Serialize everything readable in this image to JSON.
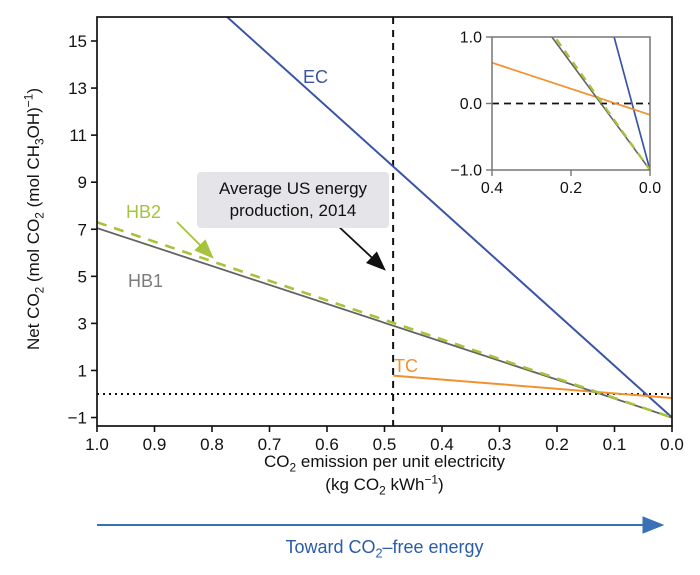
{
  "figure": {
    "background": "#ffffff",
    "axis_color": "#111111",
    "inset_axis_color": "#777777"
  },
  "chart_data": {
    "type": "line",
    "title": "",
    "xlabel_html": "CO<sub>2</sub> emission per unit electricity",
    "xlabel_line2_html": "(kg CO<sub>2</sub> kWh<sup>−1</sup>)",
    "ylabel_html": "Net CO<sub>2</sub> (mol CO<sub>2</sub> (mol CH<sub>3</sub>OH)<sup>−1</sup>)",
    "x_axis_reversed": true,
    "xlim": [
      1.0,
      0.0
    ],
    "ylim": [
      -1.4,
      16.0
    ],
    "grid": false,
    "legend": "inline-labels",
    "x_ticks": [
      1.0,
      0.9,
      0.8,
      0.7,
      0.6,
      0.5,
      0.4,
      0.3,
      0.2,
      0.1,
      0.0
    ],
    "x_tick_labels": [
      "1.0",
      "0.9",
      "0.8",
      "0.7",
      "0.6",
      "0.5",
      "0.4",
      "0.3",
      "0.2",
      "0.1",
      "0.0"
    ],
    "y_ticks": [
      -1,
      1,
      3,
      5,
      7,
      9,
      11,
      13,
      15
    ],
    "y_tick_labels": [
      "−1",
      "1",
      "3",
      "5",
      "7",
      "9",
      "11",
      "13",
      "15"
    ],
    "series": [
      {
        "name": "EC",
        "color": "#3a55a4",
        "style": "solid",
        "stroke_width": 2,
        "points": [
          [
            1.0,
            21.0
          ],
          [
            0.0,
            -1.0
          ]
        ]
      },
      {
        "name": "HB2",
        "color": "#a6c33d",
        "style": "dashed",
        "stroke_width": 2.6,
        "points": [
          [
            1.0,
            7.3
          ],
          [
            0.0,
            -1.0
          ]
        ]
      },
      {
        "name": "HB1",
        "color": "#636363",
        "style": "solid",
        "stroke_width": 1.8,
        "points": [
          [
            1.0,
            7.05
          ],
          [
            0.0,
            -1.0
          ]
        ]
      },
      {
        "name": "TC",
        "color": "#f0922d",
        "style": "solid",
        "stroke_width": 2,
        "points": [
          [
            0.485,
            0.78
          ],
          [
            0.0,
            -0.17
          ]
        ]
      }
    ],
    "series_label_colors": [
      "#3a55a4",
      "#a6c33d",
      "#7b7b7b",
      "#f0922d"
    ],
    "reference_lines": {
      "vertical_dashed_x": 0.485,
      "horizontal_dotted_y": 0.0,
      "line_color": "#111111"
    },
    "annotation": {
      "line1": "Average US energy",
      "line2": "production, 2014",
      "box_bg": "#e5e4e8",
      "arrow_color": "#111111"
    },
    "inset": {
      "xlim": [
        0.4,
        0.0
      ],
      "ylim": [
        -1.0,
        1.0
      ],
      "x_tick_labels": [
        "0.4",
        "0.2",
        "0.0"
      ],
      "x_ticks": [
        0.4,
        0.2,
        0.0
      ],
      "y_tick_labels": [
        "1.0",
        "0.0",
        "−1.0"
      ],
      "y_ticks": [
        1.0,
        0.0,
        -1.0
      ],
      "dashed_zero_line_y": 0.0
    },
    "footer": {
      "text_html": "Toward CO<sub>2</sub>–free energy",
      "text_color": "#2a5caa",
      "arrow_color": "#3a70b5"
    }
  }
}
